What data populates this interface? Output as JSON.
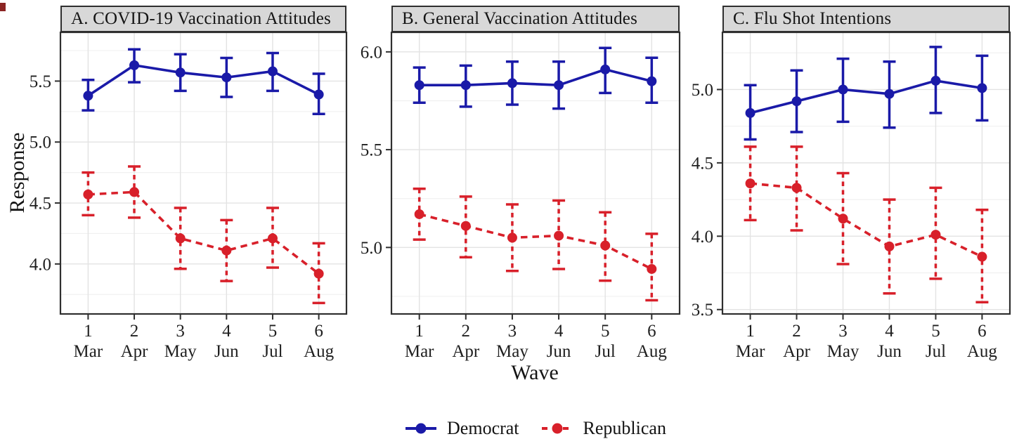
{
  "figure": {
    "y_axis_title": "Response",
    "x_axis_title": "Wave"
  },
  "chart_data": {
    "type": "line",
    "title": "",
    "xlabel": "Wave",
    "ylabel": "Response",
    "x": [
      1,
      2,
      3,
      4,
      5,
      6
    ],
    "x_tick_wave": [
      "1",
      "2",
      "3",
      "4",
      "5",
      "6"
    ],
    "x_tick_month": [
      "Mar",
      "Apr",
      "May",
      "Jun",
      "Jul",
      "Aug"
    ],
    "grid": "major and minor horizontal, major vertical",
    "legend_position": "bottom",
    "series_names": [
      "Democrat",
      "Republican"
    ],
    "colors": {
      "Democrat": "#1a1aa8",
      "Republican": "#d8202a"
    },
    "error_bars": "95% CI",
    "panels": [
      {
        "title": "A. COVID-19 Vaccination Attitudes",
        "ylim": [
          3.59,
          5.9
        ],
        "yticks": [
          "4.0",
          "4.5",
          "5.0",
          "5.5"
        ],
        "series": [
          {
            "name": "Democrat",
            "line": "solid",
            "values": [
              5.38,
              5.63,
              5.57,
              5.53,
              5.58,
              5.39
            ],
            "ci_low": [
              5.26,
              5.49,
              5.42,
              5.37,
              5.42,
              5.23
            ],
            "ci_high": [
              5.51,
              5.76,
              5.72,
              5.69,
              5.73,
              5.56
            ]
          },
          {
            "name": "Republican",
            "line": "dashed",
            "values": [
              4.57,
              4.59,
              4.21,
              4.11,
              4.21,
              3.92
            ],
            "ci_low": [
              4.4,
              4.38,
              3.96,
              3.86,
              3.97,
              3.68
            ],
            "ci_high": [
              4.75,
              4.8,
              4.46,
              4.36,
              4.46,
              4.17
            ]
          }
        ]
      },
      {
        "title": "B. General Vaccination Attitudes",
        "ylim": [
          4.66,
          6.1
        ],
        "yticks": [
          "5.0",
          "5.5",
          "6.0"
        ],
        "series": [
          {
            "name": "Democrat",
            "line": "solid",
            "values": [
              5.83,
              5.83,
              5.84,
              5.83,
              5.91,
              5.85
            ],
            "ci_low": [
              5.74,
              5.72,
              5.73,
              5.71,
              5.79,
              5.74
            ],
            "ci_high": [
              5.92,
              5.93,
              5.95,
              5.95,
              6.02,
              5.97
            ]
          },
          {
            "name": "Republican",
            "line": "dashed",
            "values": [
              5.17,
              5.11,
              5.05,
              5.06,
              5.01,
              4.89
            ],
            "ci_low": [
              5.04,
              4.95,
              4.88,
              4.89,
              4.83,
              4.73
            ],
            "ci_high": [
              5.3,
              5.26,
              5.22,
              5.24,
              5.18,
              5.07
            ]
          }
        ]
      },
      {
        "title": "C. Flu Shot Intentions",
        "ylim": [
          3.47,
          5.39
        ],
        "yticks": [
          "3.5",
          "4.0",
          "4.5",
          "5.0"
        ],
        "series": [
          {
            "name": "Democrat",
            "line": "solid",
            "values": [
              4.84,
              4.92,
              5.0,
              4.97,
              5.06,
              5.01
            ],
            "ci_low": [
              4.66,
              4.71,
              4.78,
              4.74,
              4.84,
              4.79
            ],
            "ci_high": [
              5.03,
              5.13,
              5.21,
              5.19,
              5.29,
              5.23
            ]
          },
          {
            "name": "Republican",
            "line": "dashed",
            "values": [
              4.36,
              4.33,
              4.12,
              3.93,
              4.01,
              3.86
            ],
            "ci_low": [
              4.11,
              4.04,
              3.81,
              3.61,
              3.71,
              3.55
            ],
            "ci_high": [
              4.61,
              4.61,
              4.43,
              4.25,
              4.33,
              4.18
            ]
          }
        ]
      }
    ]
  }
}
